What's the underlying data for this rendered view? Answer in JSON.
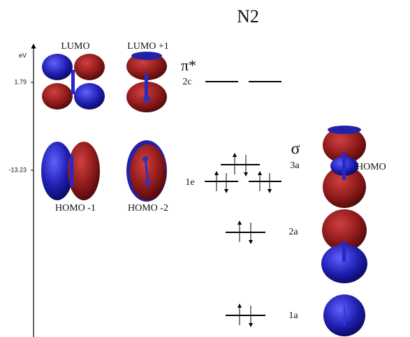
{
  "title": "N2",
  "axis": {
    "label": "eV",
    "ticks": [
      "1.79",
      "-13.23"
    ]
  },
  "orbitals": {
    "lumo": "LUMO",
    "lumo_plus_1": "LUMO +1",
    "homo_minus_1": "HOMO -1",
    "homo_minus_2": "HOMO -2",
    "homo": "HOMO"
  },
  "symmetry": {
    "pi_star": "π*",
    "sigma": "σ"
  },
  "levels": {
    "2c": "2c",
    "1e": "1e",
    "3a": "3a",
    "2a": "2a",
    "1a": "1a"
  }
}
